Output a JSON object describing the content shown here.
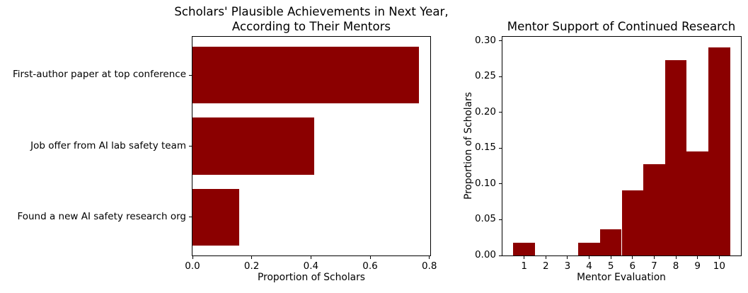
{
  "figure": {
    "background": "#ffffff",
    "text_color": "#000000",
    "bar_color": "#8B0000"
  },
  "chart_data": [
    {
      "type": "bar",
      "orientation": "horizontal",
      "title": "Scholars' Plausible Achievements in Next Year,\nAccording to Their Mentors",
      "title_lines": [
        "Scholars' Plausible Achievements in Next Year,",
        "According to Their Mentors"
      ],
      "categories": [
        "First-author paper at top conference",
        "Job offer from AI lab safety team",
        "Found a new AI safety research org"
      ],
      "values": [
        0.765,
        0.412,
        0.157
      ],
      "xlabel": "Proportion of Scholars",
      "ylabel": "",
      "xlim": [
        0,
        0.803
      ],
      "xticks": [
        0,
        0.2,
        0.4,
        0.6,
        0.8
      ],
      "xtick_labels": [
        "0.0",
        "0.2",
        "0.4",
        "0.6",
        "0.8"
      ],
      "bar_color": "#8B0000",
      "grid": false,
      "legend": false
    },
    {
      "type": "histogram",
      "title": "Mentor Support of Continued Research",
      "xlabel": "Mentor Evaluation",
      "ylabel": "Proportion of Scholars",
      "x": [
        1,
        2,
        3,
        4,
        5,
        6,
        7,
        8,
        9,
        10
      ],
      "values": [
        0.0182,
        0,
        0,
        0.0182,
        0.0364,
        0.0909,
        0.1273,
        0.2727,
        0.1455,
        0.2909
      ],
      "bin_width": 1,
      "xlim": [
        0,
        11
      ],
      "ylim": [
        0,
        0.3055
      ],
      "xticks": [
        1,
        2,
        3,
        4,
        5,
        6,
        7,
        8,
        9,
        10
      ],
      "xtick_labels": [
        "1",
        "2",
        "3",
        "4",
        "5",
        "6",
        "7",
        "8",
        "9",
        "10"
      ],
      "yticks": [
        0,
        0.05,
        0.1,
        0.15,
        0.2,
        0.25,
        0.3
      ],
      "ytick_labels": [
        "0.00",
        "0.05",
        "0.10",
        "0.15",
        "0.20",
        "0.25",
        "0.30"
      ],
      "bar_color": "#8B0000",
      "grid": false,
      "legend": false
    }
  ]
}
